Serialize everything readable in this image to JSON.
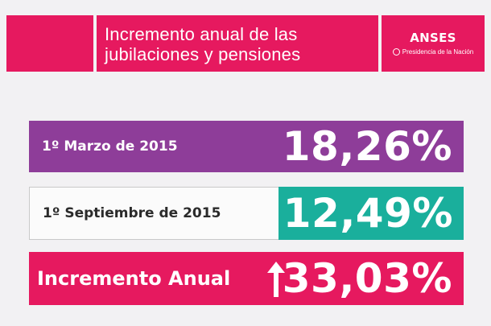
{
  "header": {
    "title_line1": "Incremento anual de las",
    "title_line2": "jubilaciones y pensiones",
    "brand": "ANSES",
    "brand_sub": "Presidencia de la Nación"
  },
  "rows": [
    {
      "label": "1º Marzo de 2015",
      "value": "18,26%"
    },
    {
      "label": "1º Septiembre de 2015",
      "value": "12,49%"
    },
    {
      "label": "Incremento Anual",
      "value": "33,03%",
      "icon": "arrow-up-icon"
    }
  ],
  "colors": {
    "magenta": "#e6195f",
    "purple": "#8e3d99",
    "teal": "#1aaf9c",
    "background": "#f2f1f3"
  }
}
